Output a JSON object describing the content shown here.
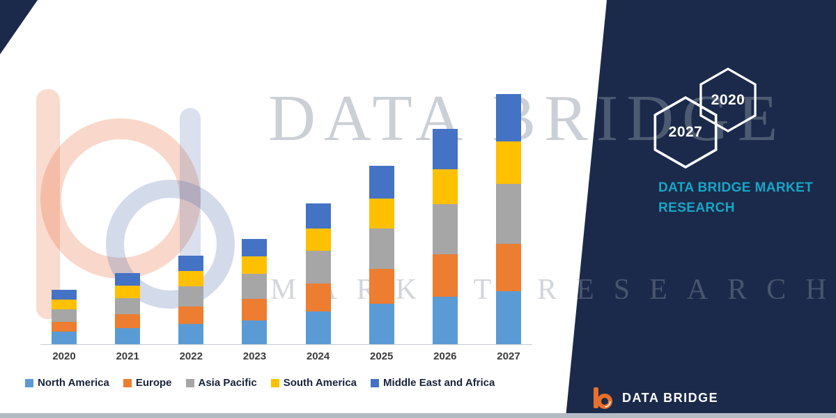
{
  "watermarks": {
    "big_title": "DATA BRIDGE",
    "spread_text": "MARKET RESEARCH"
  },
  "chart_data": {
    "type": "bar",
    "stacked": true,
    "title": "",
    "xlabel": "",
    "ylabel": "",
    "gridlines": false,
    "legend_position": "bottom",
    "categories": [
      "2020",
      "2021",
      "2022",
      "2023",
      "2024",
      "2025",
      "2026",
      "2027"
    ],
    "series": [
      {
        "name": "North America",
        "color": "#5B9BD5",
        "values": [
          5,
          6.5,
          8,
          9.5,
          13,
          16,
          19,
          21
        ]
      },
      {
        "name": "Europe",
        "color": "#ED7D31",
        "values": [
          4,
          5.5,
          7,
          8.5,
          11,
          14,
          17,
          19
        ]
      },
      {
        "name": "Asia Pacific",
        "color": "#A6A6A6",
        "values": [
          5,
          6.5,
          8,
          10,
          13,
          16,
          20,
          24
        ]
      },
      {
        "name": "South America",
        "color": "#FFC000",
        "values": [
          4,
          5,
          6,
          7,
          9,
          12,
          14,
          17
        ]
      },
      {
        "name": "Middle East and Africa",
        "color": "#4472C4",
        "values": [
          4,
          5,
          6,
          7,
          10,
          13,
          16,
          19
        ]
      }
    ],
    "totals": [
      22,
      28.5,
      35,
      42,
      56,
      71,
      86,
      100
    ],
    "ylim": [
      0,
      105
    ]
  },
  "side_panel": {
    "bg_color": "#1B2A4A",
    "hexagons": [
      {
        "label": "2027"
      },
      {
        "label": "2020"
      }
    ],
    "brand_text": "DATA BRIDGE MARKET RESEARCH",
    "brand_color": "#17A6C7"
  },
  "footer": {
    "logo_text": "DATA BRIDGE"
  }
}
